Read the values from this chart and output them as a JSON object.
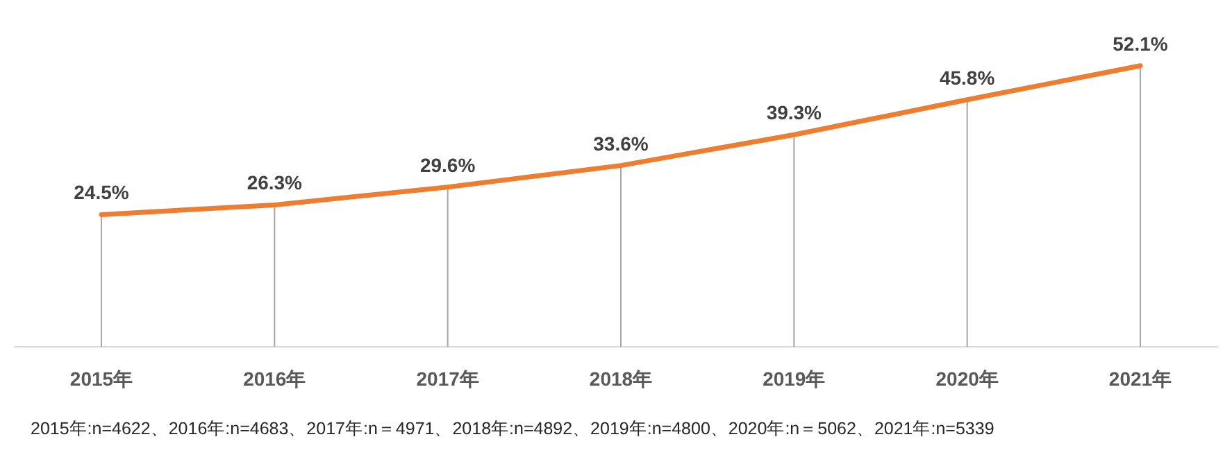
{
  "chart_data": {
    "type": "line",
    "categories": [
      "2015年",
      "2016年",
      "2017年",
      "2018年",
      "2019年",
      "2020年",
      "2021年"
    ],
    "series": [
      {
        "color": "#ed7d31",
        "values": [
          24.5,
          26.3,
          29.6,
          33.6,
          39.3,
          45.8,
          52.1
        ],
        "value_labels": [
          "24.5%",
          "26.3%",
          "29.6%",
          "33.6%",
          "39.3%",
          "45.8%",
          "52.1%"
        ]
      }
    ],
    "grid": "x",
    "tick_labels": "x",
    "marker": "none",
    "line_style": "solid",
    "annotations": [
      "2015年:n=4622、2016年:n=4683、2017年:n＝4971、2018年:n=4892、2019年:n=4800、2020年:n＝5062、2021年:n=5339"
    ]
  }
}
